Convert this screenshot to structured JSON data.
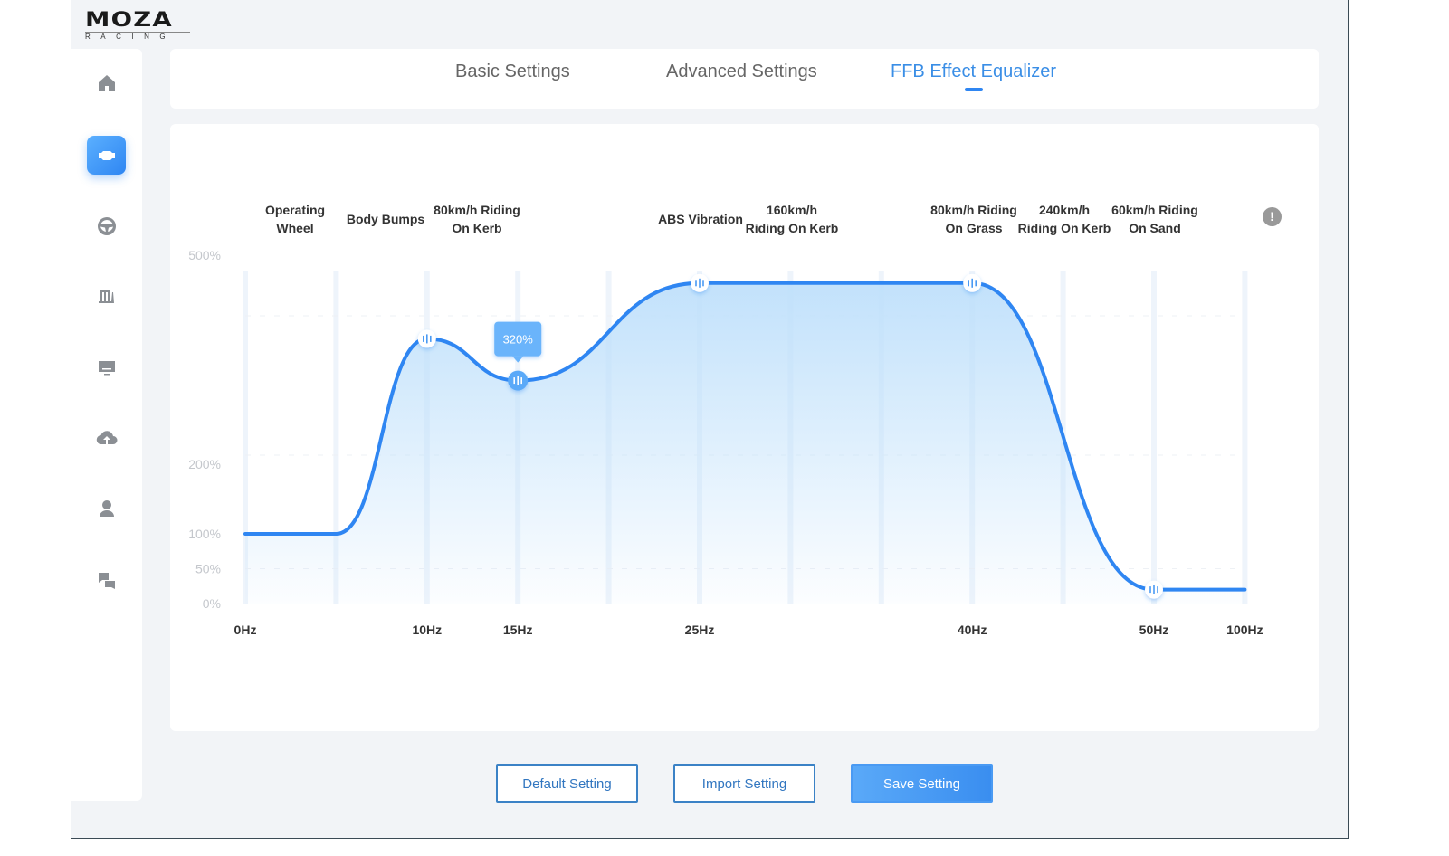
{
  "logo": {
    "brand": "MOZA",
    "sub": "RACING"
  },
  "sidebar": {
    "items": [
      {
        "icon": "home-icon",
        "active": false
      },
      {
        "icon": "motor-base-icon",
        "active": true
      },
      {
        "icon": "steering-wheel-icon",
        "active": false
      },
      {
        "icon": "pedals-icon",
        "active": false
      },
      {
        "icon": "display-icon",
        "active": false
      },
      {
        "icon": "cloud-upload-icon",
        "active": false
      },
      {
        "icon": "user-icon",
        "active": false
      },
      {
        "icon": "qa-icon",
        "active": false
      }
    ]
  },
  "tabs": [
    {
      "label": "Basic Settings"
    },
    {
      "label": "Advanced Settings"
    },
    {
      "label": "FFB Effect Equalizer",
      "active": true
    }
  ],
  "effect_labels": [
    {
      "line1": "Operating",
      "line2": "Wheel"
    },
    {
      "line1": "Body Bumps",
      "line2": ""
    },
    {
      "line1": "80km/h Riding",
      "line2": "On Kerb"
    },
    {
      "line1": "ABS Vibration",
      "line2": ""
    },
    {
      "line1": "160km/h",
      "line2": "Riding On Kerb"
    },
    {
      "line1": "80km/h Riding",
      "line2": "On Grass"
    },
    {
      "line1": "240km/h",
      "line2": "Riding On Kerb"
    },
    {
      "line1": "60km/h Riding",
      "line2": "On Sand"
    }
  ],
  "info_icon": "!",
  "chart_data": {
    "type": "area",
    "y_ticks": [
      {
        "value": 0,
        "label": "0%"
      },
      {
        "value": 50,
        "label": "50%"
      },
      {
        "value": 100,
        "label": "100%"
      },
      {
        "value": 200,
        "label": "200%"
      },
      {
        "value": 500,
        "label": "500%"
      }
    ],
    "x_ticks": [
      {
        "value": 0,
        "label": "0Hz"
      },
      {
        "value": 10,
        "label": "10Hz"
      },
      {
        "value": 15,
        "label": "15Hz"
      },
      {
        "value": 25,
        "label": "25Hz"
      },
      {
        "value": 40,
        "label": "40Hz"
      },
      {
        "value": 50,
        "label": "50Hz"
      },
      {
        "value": 100,
        "label": "100Hz"
      }
    ],
    "ylim": [
      0,
      500
    ],
    "points": [
      [
        0,
        100
      ],
      [
        5,
        100
      ],
      [
        10,
        380
      ],
      [
        15,
        320
      ],
      [
        25,
        460
      ],
      [
        40,
        460
      ],
      [
        50,
        20
      ],
      [
        100,
        20
      ]
    ],
    "handles": [
      10,
      15,
      25,
      40,
      50
    ],
    "selected": 15,
    "tooltip": "320%",
    "line_color": "#2f86f2",
    "fill_color": "#bfe0fb"
  },
  "buttons": {
    "default": "Default Setting",
    "import": "Import Setting",
    "save": "Save Setting"
  }
}
